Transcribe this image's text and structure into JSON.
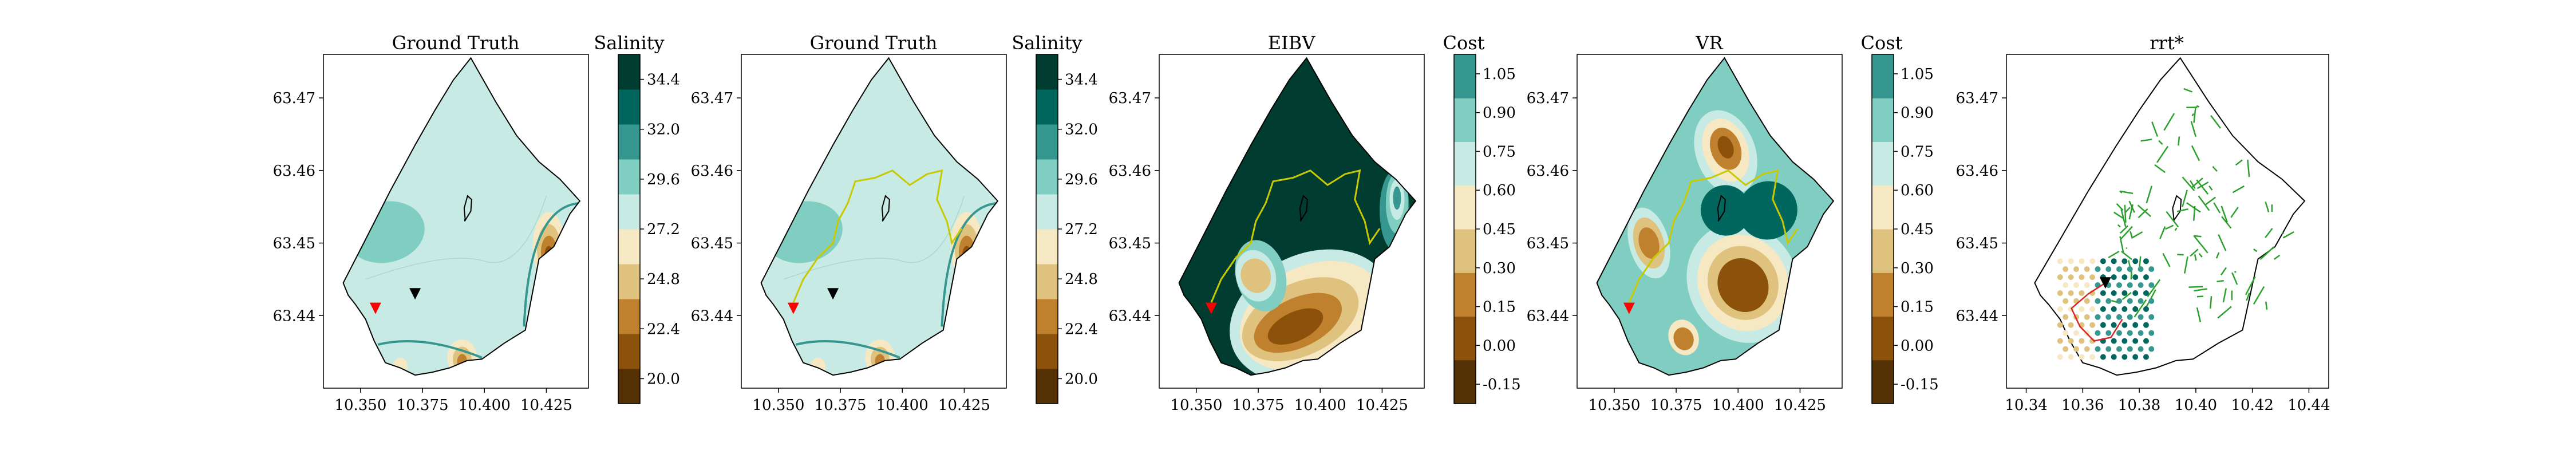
{
  "salinity_colors": [
    "#543005",
    "#8c510a",
    "#bf812d",
    "#dfc27d",
    "#f6e8c3",
    "#c7eae5",
    "#80cdc1",
    "#35978f",
    "#01665e",
    "#003c30"
  ],
  "salinity_levels": [
    20.0,
    21.2,
    22.4,
    23.6,
    24.8,
    26.0,
    27.2,
    28.4,
    29.6,
    30.8,
    32.0,
    33.2,
    34.4,
    35.0
  ],
  "cost_colors": [
    "#543005",
    "#8c510a",
    "#bf812d",
    "#dfc27d",
    "#f6e8c3",
    "#c7eae5",
    "#80cdc1",
    "#35978f",
    "#01665e",
    "#003c30"
  ],
  "cost_levels": [
    -0.15,
    0.0,
    0.15,
    0.3,
    0.45,
    0.6,
    0.75,
    0.9,
    1.05
  ],
  "path_color": "#c9c900",
  "marker_start_color": "#ff0000",
  "marker_current_color": "#000000",
  "chart_data": [
    {
      "type": "heatmap",
      "title": "Ground Truth",
      "colorbar_label": "Salinity",
      "colorbar_ticks": [
        "34.4",
        "32.0",
        "29.6",
        "27.2",
        "24.8",
        "22.4",
        "20.0"
      ],
      "x_ticks": [
        "10.350",
        "10.375",
        "10.400",
        "10.425"
      ],
      "y_ticks": [
        "63.47",
        "63.46",
        "63.45",
        "63.44"
      ],
      "x_range": [
        10.335,
        10.442
      ],
      "y_range": [
        63.43,
        63.476
      ],
      "show_path": false,
      "markers": [
        {
          "kind": "start",
          "lon": 10.356,
          "lat": 63.441
        },
        {
          "kind": "current",
          "lon": 10.372,
          "lat": 63.443
        }
      ]
    },
    {
      "type": "heatmap",
      "title": "Ground Truth",
      "colorbar_label": "Salinity",
      "colorbar_ticks": [
        "34.4",
        "32.0",
        "29.6",
        "27.2",
        "24.8",
        "22.4",
        "20.0"
      ],
      "x_ticks": [
        "10.350",
        "10.375",
        "10.400",
        "10.425"
      ],
      "y_ticks": [
        "63.47",
        "63.46",
        "63.45",
        "63.44"
      ],
      "x_range": [
        10.335,
        10.442
      ],
      "y_range": [
        63.43,
        63.476
      ],
      "show_path": true,
      "markers": [
        {
          "kind": "start",
          "lon": 10.356,
          "lat": 63.441
        },
        {
          "kind": "current",
          "lon": 10.372,
          "lat": 63.443
        }
      ]
    },
    {
      "type": "heatmap",
      "title": "EIBV",
      "colorbar_label": "Cost",
      "colorbar_ticks": [
        "1.05",
        "0.90",
        "0.75",
        "0.60",
        "0.45",
        "0.30",
        "0.15",
        "0.00",
        "-0.15"
      ],
      "x_ticks": [
        "10.350",
        "10.375",
        "10.400",
        "10.425"
      ],
      "y_ticks": [
        "63.47",
        "63.46",
        "63.45",
        "63.44"
      ],
      "x_range": [
        10.335,
        10.442
      ],
      "y_range": [
        63.43,
        63.476
      ],
      "show_path": true,
      "markers": [
        {
          "kind": "start",
          "lon": 10.356,
          "lat": 63.441
        }
      ]
    },
    {
      "type": "heatmap",
      "title": "VR",
      "colorbar_label": "Cost",
      "colorbar_ticks": [
        "1.05",
        "0.90",
        "0.75",
        "0.60",
        "0.45",
        "0.30",
        "0.15",
        "0.00",
        "-0.15"
      ],
      "x_ticks": [
        "10.350",
        "10.375",
        "10.400",
        "10.425"
      ],
      "y_ticks": [
        "63.47",
        "63.46",
        "63.45",
        "63.44"
      ],
      "x_range": [
        10.335,
        10.442
      ],
      "y_range": [
        63.43,
        63.476
      ],
      "show_path": true,
      "markers": [
        {
          "kind": "start",
          "lon": 10.356,
          "lat": 63.441
        }
      ]
    },
    {
      "type": "scatter",
      "title": "rrt*",
      "x_ticks": [
        "10.34",
        "10.36",
        "10.38",
        "10.40",
        "10.42",
        "10.44"
      ],
      "y_ticks": [
        "63.47",
        "63.46",
        "63.45",
        "63.44"
      ],
      "x_range": [
        10.333,
        10.447
      ],
      "y_range": [
        63.43,
        63.476
      ],
      "tree_color": "#2ca02c",
      "best_path_color": "#d62728"
    }
  ]
}
